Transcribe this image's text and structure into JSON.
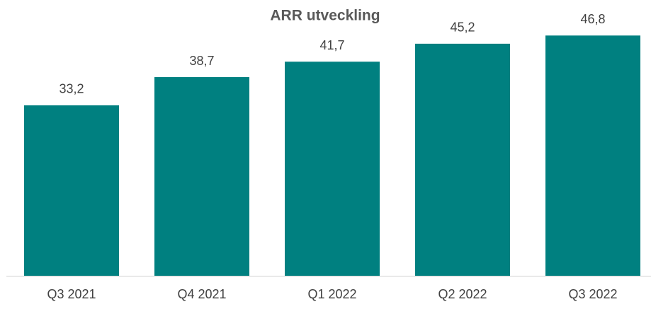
{
  "chart_data": {
    "type": "bar",
    "title": "ARR utveckling",
    "categories": [
      "Q3 2021",
      "Q4 2021",
      "Q1 2022",
      "Q2 2022",
      "Q3 2022"
    ],
    "values": [
      33.2,
      38.7,
      41.7,
      45.2,
      46.8
    ],
    "value_labels": [
      "33,2",
      "38,7",
      "41,7",
      "45,2",
      "46,8"
    ],
    "color": "#008080"
  }
}
